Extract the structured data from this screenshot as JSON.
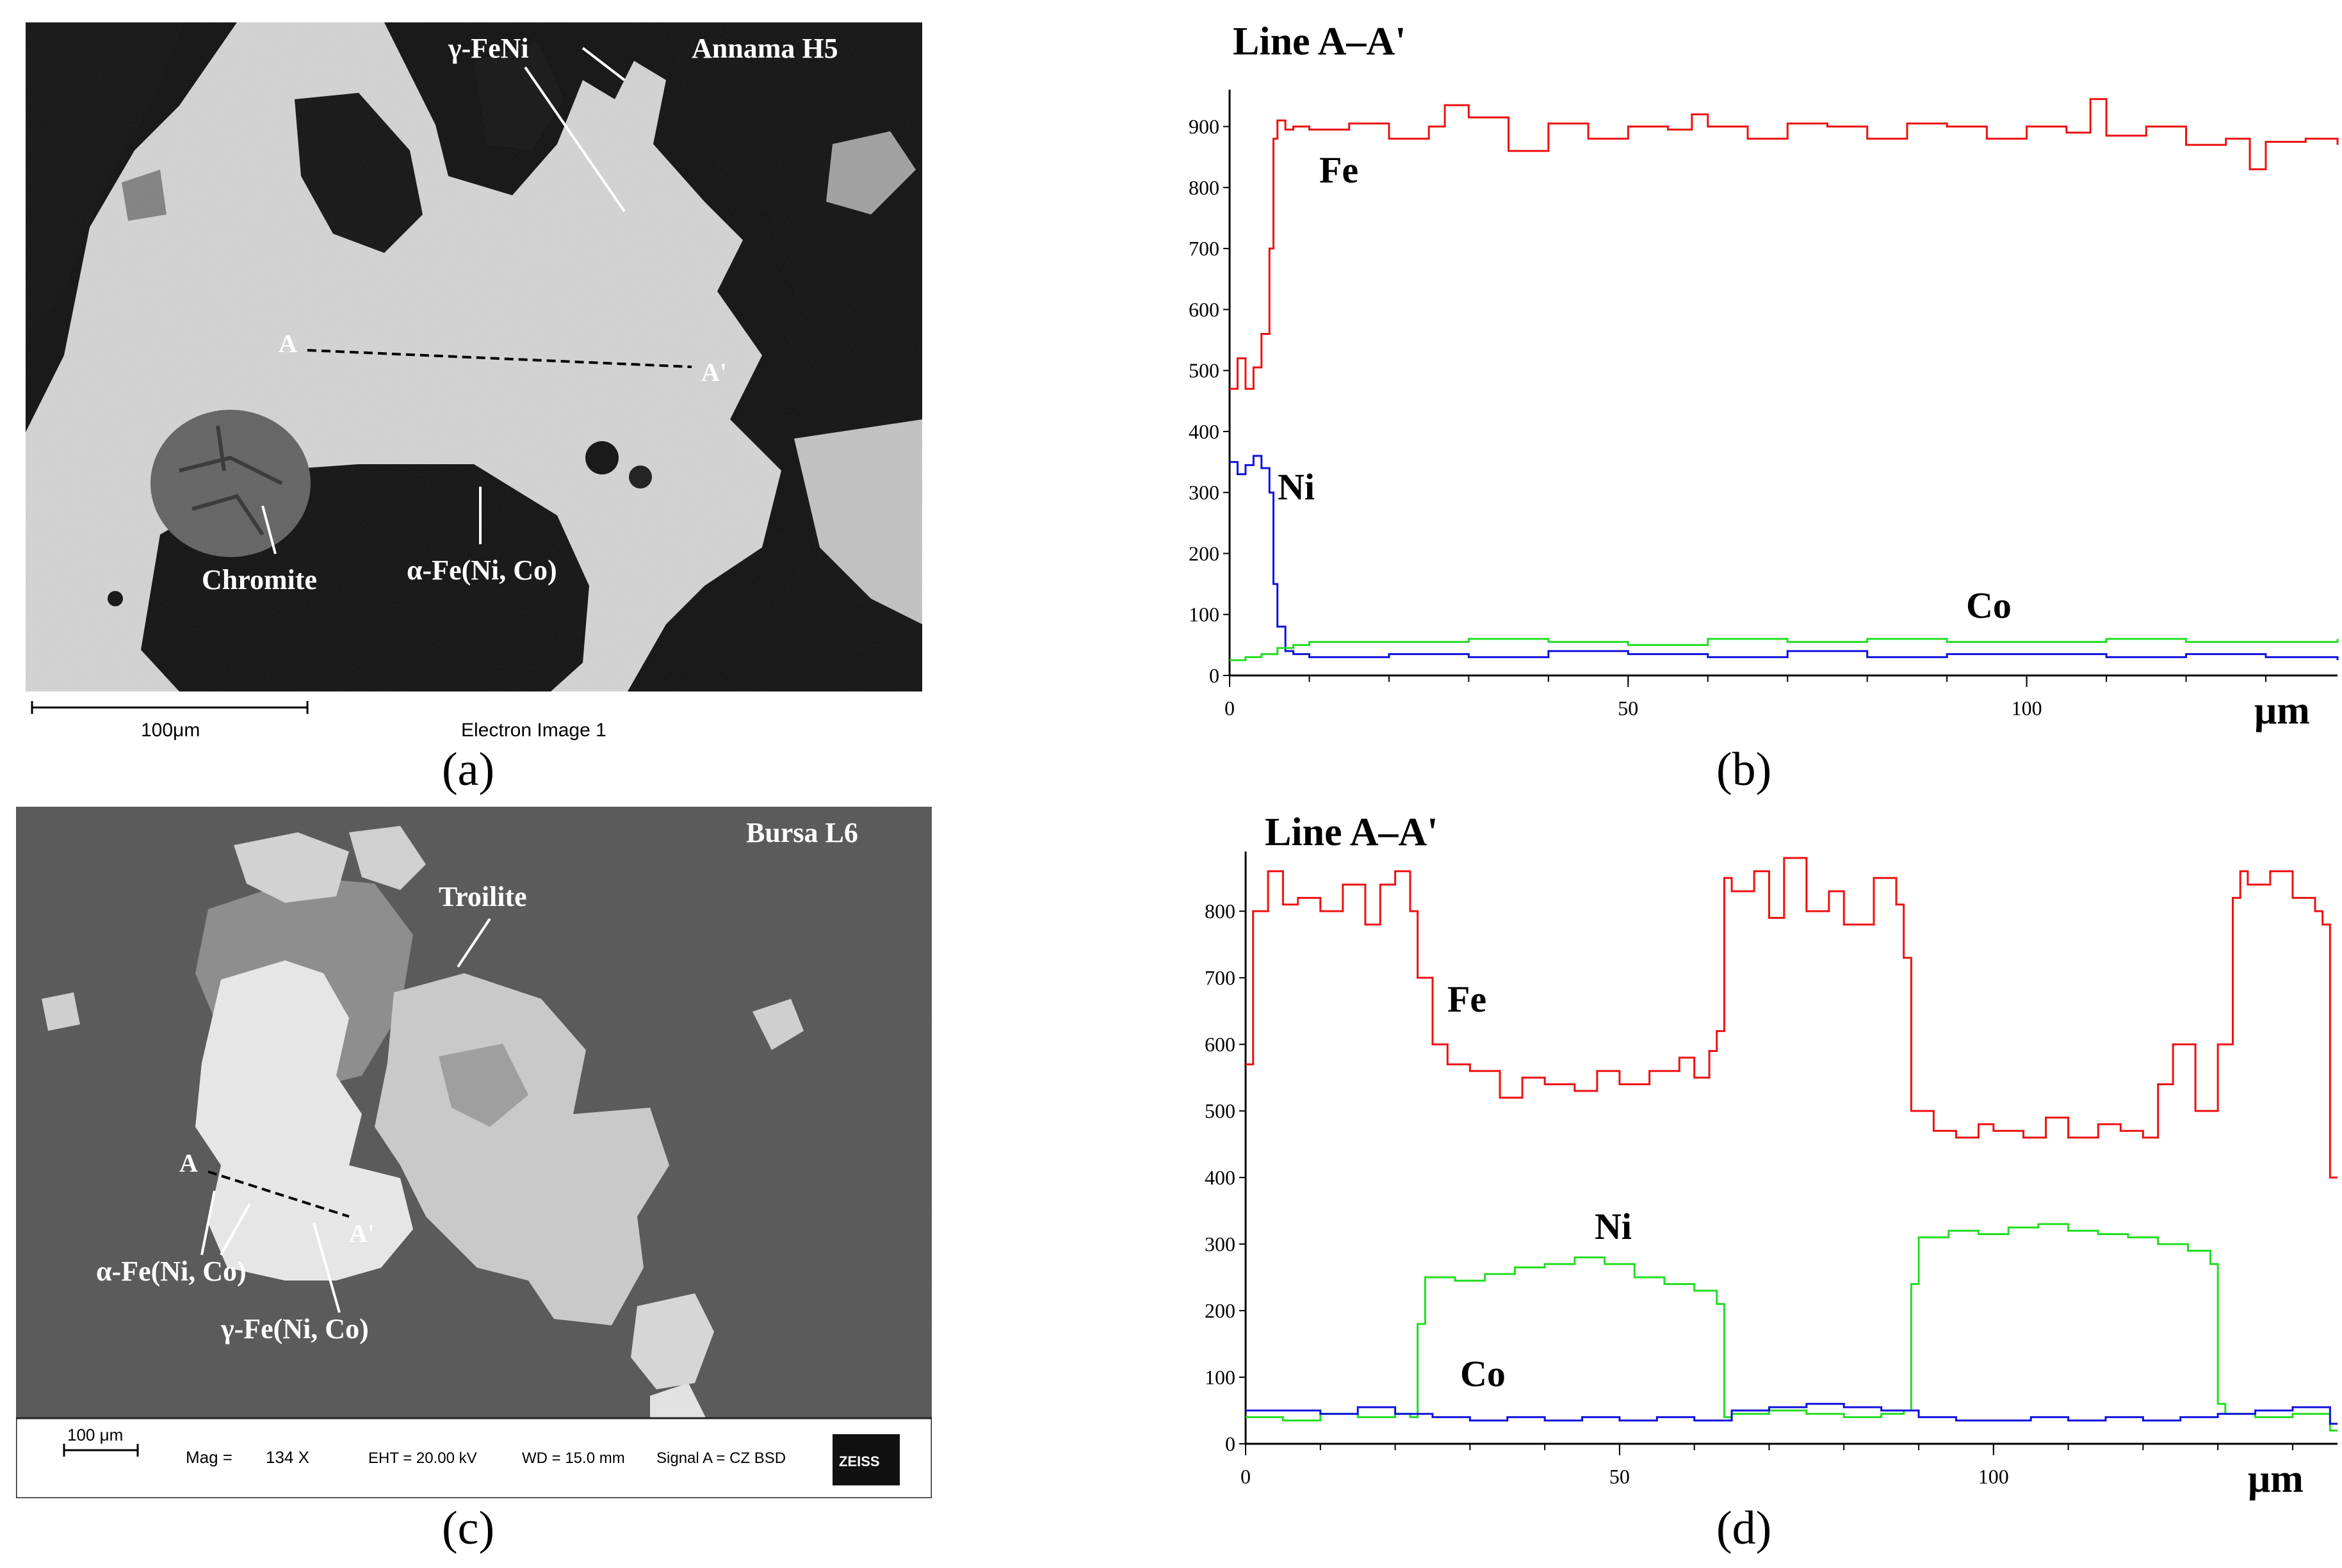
{
  "panels": {
    "a": {
      "caption": "(a)",
      "sample_label": "Annama H5",
      "labels": {
        "gamma_fenis": "γ-FeNi",
        "point_a": "A",
        "point_a_prime": "A'",
        "chromite": "Chromite",
        "alpha_fe": "α-Fe(Ni, Co)"
      },
      "scalebar_label": "100μm",
      "image_caption": "Electron Image 1"
    },
    "b": {
      "caption": "(b)",
      "title": "Line A–A'",
      "unit": "μm",
      "series_labels": {
        "fe": "Fe",
        "ni": "Ni",
        "co": "Co"
      }
    },
    "c": {
      "caption": "(c)",
      "sample_label": "Bursa L6",
      "labels": {
        "troilite": "Troilite",
        "point_a": "A",
        "point_a_prime": "A'",
        "alpha_fe": "α-Fe(Ni, Co)",
        "gamma_fe": "γ-Fe(Ni, Co)"
      },
      "infobar": {
        "scale": "100 μm",
        "mag": "Mag =",
        "mag_value": "134 X",
        "eht": "EHT = 20.00 kV",
        "wd": "WD = 15.0 mm",
        "signal": "Signal A = CZ BSD",
        "logo": "ZEISS"
      }
    },
    "d": {
      "caption": "(d)",
      "title": "Line A–A'",
      "unit": "μm",
      "series_labels": {
        "fe": "Fe",
        "ni": "Ni",
        "co": "Co"
      }
    }
  },
  "colors": {
    "fe": "#ee1111",
    "ni_b": "#1111dd",
    "co_b": "#22dd22",
    "ni_d": "#22dd22",
    "co_d": "#1111dd"
  },
  "chart_data": [
    {
      "type": "line",
      "title": "Line A–A'",
      "xlabel": "μm",
      "ylabel": "",
      "xlim": [
        0,
        139
      ],
      "ylim": [
        0,
        950
      ],
      "xticks": [
        0,
        50,
        100
      ],
      "yticks": [
        0,
        100,
        200,
        300,
        400,
        500,
        600,
        700,
        800,
        900
      ],
      "grid": false,
      "series": [
        {
          "name": "Fe",
          "color": "#ee1111",
          "x": [
            0,
            1,
            2,
            3,
            4,
            5,
            5.5,
            6,
            7,
            8,
            10,
            15,
            20,
            25,
            27,
            30,
            35,
            40,
            45,
            50,
            55,
            58,
            60,
            65,
            70,
            75,
            80,
            85,
            90,
            95,
            100,
            105,
            108,
            110,
            115,
            120,
            125,
            128,
            130,
            135,
            139
          ],
          "y": [
            470,
            520,
            470,
            505,
            560,
            700,
            880,
            910,
            895,
            900,
            895,
            905,
            880,
            900,
            935,
            915,
            860,
            905,
            880,
            900,
            895,
            920,
            900,
            880,
            905,
            900,
            880,
            905,
            900,
            880,
            900,
            890,
            945,
            885,
            900,
            870,
            880,
            830,
            875,
            880,
            870
          ]
        },
        {
          "name": "Ni",
          "color": "#1111dd",
          "x": [
            0,
            1,
            2,
            3,
            4,
            5,
            5.5,
            6,
            7,
            8,
            10,
            20,
            30,
            40,
            50,
            60,
            70,
            80,
            90,
            100,
            110,
            120,
            130,
            139
          ],
          "y": [
            350,
            330,
            345,
            360,
            340,
            300,
            150,
            80,
            40,
            35,
            30,
            35,
            30,
            40,
            35,
            30,
            40,
            30,
            35,
            35,
            30,
            35,
            30,
            25
          ]
        },
        {
          "name": "Co",
          "color": "#22dd22",
          "x": [
            0,
            2,
            4,
            6,
            8,
            10,
            20,
            30,
            40,
            50,
            60,
            70,
            80,
            90,
            100,
            110,
            120,
            130,
            139
          ],
          "y": [
            25,
            30,
            35,
            45,
            50,
            55,
            55,
            60,
            55,
            50,
            60,
            55,
            60,
            55,
            55,
            60,
            55,
            55,
            60
          ]
        }
      ]
    },
    {
      "type": "line",
      "title": "Line A–A'",
      "xlabel": "μm",
      "ylabel": "",
      "xlim": [
        0,
        146
      ],
      "ylim": [
        0,
        880
      ],
      "xticks": [
        0,
        50,
        100
      ],
      "yticks": [
        0,
        100,
        200,
        300,
        400,
        500,
        600,
        700,
        800
      ],
      "grid": false,
      "series": [
        {
          "name": "Fe",
          "color": "#ee1111",
          "x": [
            0,
            1,
            3,
            5,
            7,
            10,
            13,
            16,
            18,
            20,
            22,
            23,
            25,
            27,
            30,
            34,
            37,
            40,
            44,
            47,
            50,
            54,
            58,
            60,
            62,
            63,
            64,
            65,
            68,
            70,
            72,
            75,
            78,
            80,
            84,
            87,
            88,
            89,
            92,
            95,
            98,
            100,
            104,
            107,
            110,
            114,
            117,
            120,
            122,
            124,
            127,
            130,
            132,
            133,
            134,
            137,
            140,
            143,
            144,
            145
          ],
          "y": [
            570,
            800,
            860,
            810,
            820,
            800,
            840,
            780,
            840,
            860,
            800,
            700,
            600,
            570,
            560,
            520,
            550,
            540,
            530,
            560,
            540,
            560,
            580,
            550,
            590,
            620,
            850,
            830,
            860,
            790,
            880,
            800,
            830,
            780,
            850,
            810,
            730,
            500,
            470,
            460,
            480,
            470,
            460,
            490,
            460,
            480,
            470,
            460,
            540,
            600,
            500,
            600,
            820,
            860,
            840,
            860,
            820,
            800,
            780,
            400
          ]
        },
        {
          "name": "Ni",
          "color": "#22dd22",
          "x": [
            0,
            5,
            10,
            15,
            20,
            22,
            23,
            24,
            28,
            32,
            36,
            40,
            44,
            48,
            52,
            56,
            60,
            63,
            64,
            65,
            70,
            75,
            80,
            85,
            88,
            89,
            90,
            94,
            98,
            102,
            106,
            110,
            114,
            118,
            122,
            126,
            129,
            130,
            131,
            135,
            140,
            145
          ],
          "y": [
            40,
            35,
            45,
            40,
            45,
            40,
            180,
            250,
            245,
            255,
            265,
            270,
            280,
            270,
            250,
            240,
            230,
            210,
            40,
            45,
            50,
            45,
            40,
            45,
            50,
            240,
            310,
            320,
            315,
            325,
            330,
            320,
            315,
            310,
            300,
            290,
            270,
            60,
            45,
            40,
            45,
            20
          ]
        },
        {
          "name": "Co",
          "color": "#1111dd",
          "x": [
            0,
            5,
            10,
            15,
            20,
            25,
            30,
            35,
            40,
            45,
            50,
            55,
            60,
            65,
            70,
            75,
            80,
            85,
            90,
            95,
            100,
            105,
            110,
            115,
            120,
            125,
            130,
            135,
            140,
            145
          ],
          "y": [
            50,
            50,
            45,
            55,
            45,
            40,
            35,
            40,
            35,
            40,
            35,
            40,
            35,
            50,
            55,
            60,
            55,
            50,
            40,
            35,
            35,
            40,
            35,
            40,
            35,
            40,
            45,
            50,
            55,
            30
          ]
        }
      ]
    }
  ]
}
